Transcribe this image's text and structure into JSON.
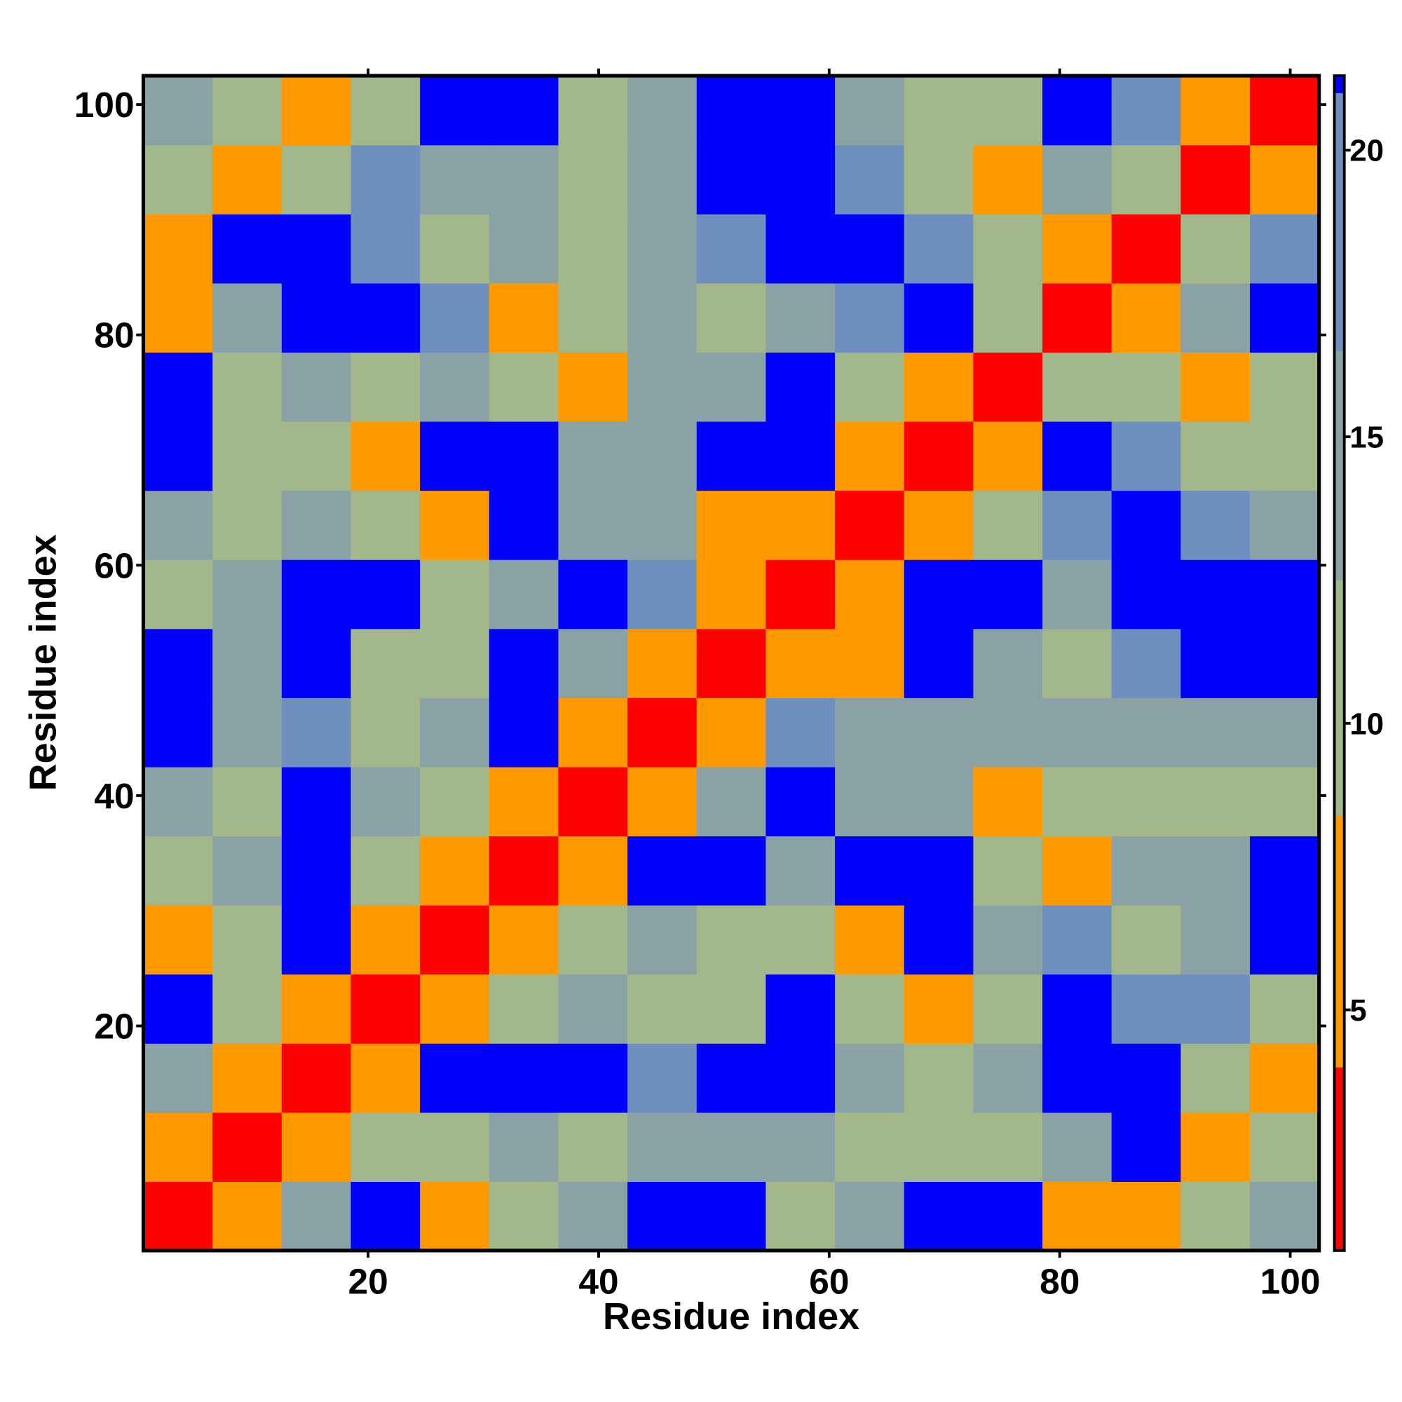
{
  "chart_data": {
    "type": "heatmap",
    "x_label": "Residue index",
    "y_label": "Residue index",
    "xlim": [
      0.5,
      102.5
    ],
    "ylim": [
      0.5,
      102.5
    ],
    "xticks": [
      20,
      40,
      60,
      80,
      100
    ],
    "yticks": [
      20,
      40,
      60,
      80,
      100
    ],
    "x_edges": [
      0.5,
      6.5,
      12.5,
      18.5,
      24.5,
      30.5,
      36.5,
      42.5,
      48.5,
      54.5,
      60.5,
      66.5,
      72.5,
      78.5,
      84.5,
      90.5,
      96.5,
      102.5
    ],
    "y_edges": [
      0.5,
      6.5,
      12.5,
      18.5,
      24.5,
      30.5,
      36.5,
      42.5,
      48.5,
      54.5,
      60.5,
      66.5,
      72.5,
      78.5,
      84.5,
      90.5,
      96.5,
      102.5
    ],
    "z": [
      [
        2.5,
        6,
        16,
        24,
        7,
        11,
        14,
        24,
        24,
        11,
        14,
        24,
        24,
        8,
        7,
        12,
        14
      ],
      [
        6,
        2.5,
        6,
        12,
        12,
        15,
        12,
        14,
        16,
        16,
        12,
        12,
        12,
        14,
        24,
        6,
        11
      ],
      [
        16,
        6,
        2.5,
        6,
        24,
        24,
        24,
        17,
        24,
        24,
        16,
        11,
        13,
        24,
        24,
        11,
        6
      ],
      [
        24,
        12,
        6,
        2.5,
        6,
        12,
        16,
        12,
        12,
        24,
        12,
        7,
        12,
        24,
        19,
        17,
        12
      ],
      [
        7,
        12,
        24,
        6,
        2.5,
        6,
        11,
        13,
        11,
        10,
        6,
        24,
        16,
        17,
        12,
        14,
        24
      ],
      [
        11,
        15,
        24,
        12,
        6,
        2.5,
        6,
        24,
        24,
        14,
        24,
        24,
        11,
        6,
        16,
        16,
        24
      ],
      [
        14,
        12,
        24,
        16,
        11,
        6,
        2.5,
        6,
        16,
        24,
        14,
        16,
        7,
        11,
        11,
        12,
        11
      ],
      [
        24,
        14,
        17,
        12,
        13,
        24,
        6,
        2.5,
        6,
        17,
        15,
        13,
        14,
        16,
        14,
        14,
        16
      ],
      [
        24,
        16,
        24,
        12,
        11,
        24,
        16,
        6,
        2.5,
        5,
        7,
        24,
        13,
        12,
        18,
        24,
        24
      ],
      [
        11,
        16,
        24,
        24,
        10,
        14,
        24,
        17,
        5,
        2.5,
        6,
        24,
        24,
        13,
        24,
        24,
        24
      ],
      [
        14,
        12,
        16,
        12,
        6,
        24,
        14,
        15,
        7,
        6,
        2.5,
        6,
        12,
        18,
        24,
        17,
        15
      ],
      [
        24,
        12,
        11,
        7,
        24,
        24,
        16,
        13,
        24,
        24,
        6,
        2.5,
        6,
        24,
        17,
        12,
        10
      ],
      [
        24,
        12,
        13,
        12,
        16,
        11,
        7,
        14,
        13,
        24,
        12,
        6,
        2.5,
        10,
        11,
        7,
        11
      ],
      [
        8,
        14,
        24,
        24,
        17,
        6,
        11,
        16,
        12,
        13,
        18,
        24,
        10,
        2.5,
        6,
        16,
        24
      ],
      [
        7,
        24,
        24,
        19,
        12,
        16,
        11,
        14,
        18,
        24,
        24,
        17,
        11,
        6,
        2.5,
        10,
        19
      ],
      [
        12,
        6,
        11,
        17,
        14,
        16,
        12,
        14,
        24,
        24,
        17,
        12,
        7,
        16,
        10,
        2.5,
        6
      ],
      [
        14,
        11,
        6,
        12,
        24,
        24,
        11,
        16,
        24,
        24,
        15,
        10,
        11,
        24,
        19,
        6,
        2.5
      ]
    ],
    "colorbar": {
      "bins": [
        0.8,
        4,
        8.4,
        12.5,
        16.5,
        21,
        21.3
      ],
      "colors": [
        "#ff0000",
        "#ff9900",
        "#a3b88a",
        "#8aa2a6",
        "#6f8fbf",
        "#0000ff"
      ],
      "ticks": [
        5,
        10,
        15,
        20
      ]
    }
  }
}
